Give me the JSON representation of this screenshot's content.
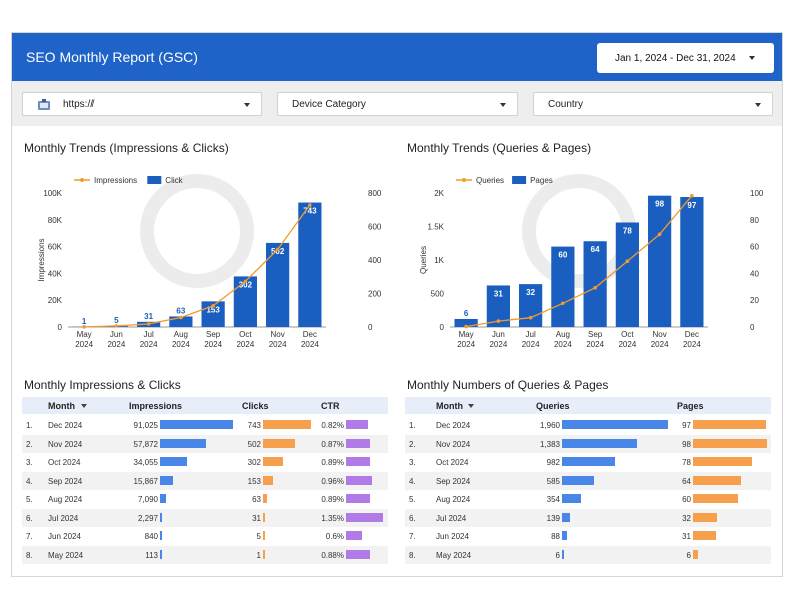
{
  "header": {
    "title": "SEO Monthly Report (GSC)",
    "date_range": "Jan 1, 2024 - Dec 31, 2024"
  },
  "filters": {
    "site": "https://̸",
    "device": "Device Category",
    "country": "Country"
  },
  "colors": {
    "header": "#1f63c8",
    "bar_blue": "#1a5fbf",
    "line_orange": "#f39a2e",
    "tbl_blue": "#4a86e8",
    "tbl_orange": "#f6a04d",
    "tbl_purple": "#b07be6"
  },
  "chart1": {
    "section_title": "Monthly Trends (Impressions & Clicks)",
    "chart_data": {
      "type": "bar",
      "categories": [
        [
          "May",
          "2024"
        ],
        [
          "Jun",
          "2024"
        ],
        [
          "Jul",
          "2024"
        ],
        [
          "Aug",
          "2024"
        ],
        [
          "Sep",
          "2024"
        ],
        [
          "Oct",
          "2024"
        ],
        [
          "Nov",
          "2024"
        ],
        [
          "Dec",
          "2024"
        ]
      ],
      "series": [
        {
          "name": "Impressions",
          "kind": "line",
          "axis": "left",
          "values": [
            113,
            840,
            2297,
            7090,
            15867,
            34055,
            57872,
            91025
          ]
        },
        {
          "name": "Click",
          "kind": "bar",
          "axis": "right",
          "values": [
            1,
            5,
            31,
            63,
            153,
            302,
            502,
            743
          ]
        }
      ],
      "ylabel": "Impressions",
      "y2label": "Click",
      "ylim": [
        0,
        100000
      ],
      "y2lim": [
        0,
        800
      ],
      "yticks": [
        "0",
        "20K",
        "40K",
        "60K",
        "80K",
        "100K"
      ],
      "y2ticks": [
        "0",
        "200",
        "400",
        "600",
        "800"
      ],
      "bar_labels": [
        "1",
        "5",
        "31",
        "63",
        "153",
        "302",
        "502",
        "743"
      ],
      "legend": "top-left"
    }
  },
  "chart2": {
    "section_title": "Monthly Trends (Queries & Pages)",
    "chart_data": {
      "type": "bar",
      "categories": [
        [
          "May",
          "2024"
        ],
        [
          "Jun",
          "2024"
        ],
        [
          "Jul",
          "2024"
        ],
        [
          "Aug",
          "2024"
        ],
        [
          "Sep",
          "2024"
        ],
        [
          "Oct",
          "2024"
        ],
        [
          "Nov",
          "2024"
        ],
        [
          "Dec",
          "2024"
        ]
      ],
      "series": [
        {
          "name": "Queries",
          "kind": "line",
          "axis": "left",
          "values": [
            6,
            88,
            139,
            354,
            585,
            982,
            1383,
            1960
          ]
        },
        {
          "name": "Pages",
          "kind": "bar",
          "axis": "right",
          "values": [
            6,
            31,
            32,
            60,
            64,
            78,
            98,
            97
          ]
        }
      ],
      "ylabel": "Queries",
      "y2label": "Pages",
      "ylim": [
        0,
        2000
      ],
      "y2lim": [
        0,
        100
      ],
      "yticks": [
        "0",
        "500",
        "1K",
        "1.5K",
        "2K"
      ],
      "y2ticks": [
        "0",
        "20",
        "40",
        "60",
        "80",
        "100"
      ],
      "bar_labels": [
        "6",
        "31",
        "32",
        "60",
        "64",
        "78",
        "98",
        "97"
      ],
      "legend": "top-left"
    }
  },
  "table1": {
    "section_title": "Monthly Impressions & Clicks",
    "columns": [
      "Month",
      "Impressions",
      "Clicks",
      "CTR"
    ],
    "rows": [
      {
        "n": "1.",
        "month": "Dec 2024",
        "impressions": "91,025",
        "clicks": "743",
        "ctr": "0.82%",
        "iv": 91025,
        "cv": 743,
        "rv": 0.82
      },
      {
        "n": "2.",
        "month": "Nov 2024",
        "impressions": "57,872",
        "clicks": "502",
        "ctr": "0.87%",
        "iv": 57872,
        "cv": 502,
        "rv": 0.87
      },
      {
        "n": "3.",
        "month": "Oct 2024",
        "impressions": "34,055",
        "clicks": "302",
        "ctr": "0.89%",
        "iv": 34055,
        "cv": 302,
        "rv": 0.89
      },
      {
        "n": "4.",
        "month": "Sep 2024",
        "impressions": "15,867",
        "clicks": "153",
        "ctr": "0.96%",
        "iv": 15867,
        "cv": 153,
        "rv": 0.96
      },
      {
        "n": "5.",
        "month": "Aug 2024",
        "impressions": "7,090",
        "clicks": "63",
        "ctr": "0.89%",
        "iv": 7090,
        "cv": 63,
        "rv": 0.89
      },
      {
        "n": "6.",
        "month": "Jul 2024",
        "impressions": "2,297",
        "clicks": "31",
        "ctr": "1.35%",
        "iv": 2297,
        "cv": 31,
        "rv": 1.35
      },
      {
        "n": "7.",
        "month": "Jun 2024",
        "impressions": "840",
        "clicks": "5",
        "ctr": "0.6%",
        "iv": 840,
        "cv": 5,
        "rv": 0.6
      },
      {
        "n": "8.",
        "month": "May 2024",
        "impressions": "113",
        "clicks": "1",
        "ctr": "0.88%",
        "iv": 113,
        "cv": 1,
        "rv": 0.88
      }
    ]
  },
  "table2": {
    "section_title": "Monthly Numbers of Queries & Pages",
    "columns": [
      "Month",
      "Queries",
      "Pages"
    ],
    "rows": [
      {
        "n": "1.",
        "month": "Dec 2024",
        "queries": "1,960",
        "pages": "97",
        "qv": 1960,
        "pv": 97
      },
      {
        "n": "2.",
        "month": "Nov 2024",
        "queries": "1,383",
        "pages": "98",
        "qv": 1383,
        "pv": 98
      },
      {
        "n": "3.",
        "month": "Oct 2024",
        "queries": "982",
        "pages": "78",
        "qv": 982,
        "pv": 78
      },
      {
        "n": "4.",
        "month": "Sep 2024",
        "queries": "585",
        "pages": "64",
        "qv": 585,
        "pv": 64
      },
      {
        "n": "5.",
        "month": "Aug 2024",
        "queries": "354",
        "pages": "60",
        "qv": 354,
        "pv": 60
      },
      {
        "n": "6.",
        "month": "Jul 2024",
        "queries": "139",
        "pages": "32",
        "qv": 139,
        "pv": 32
      },
      {
        "n": "7.",
        "month": "Jun 2024",
        "queries": "88",
        "pages": "31",
        "qv": 88,
        "pv": 31
      },
      {
        "n": "8.",
        "month": "May 2024",
        "queries": "6",
        "pages": "6",
        "qv": 6,
        "pv": 6
      }
    ]
  }
}
